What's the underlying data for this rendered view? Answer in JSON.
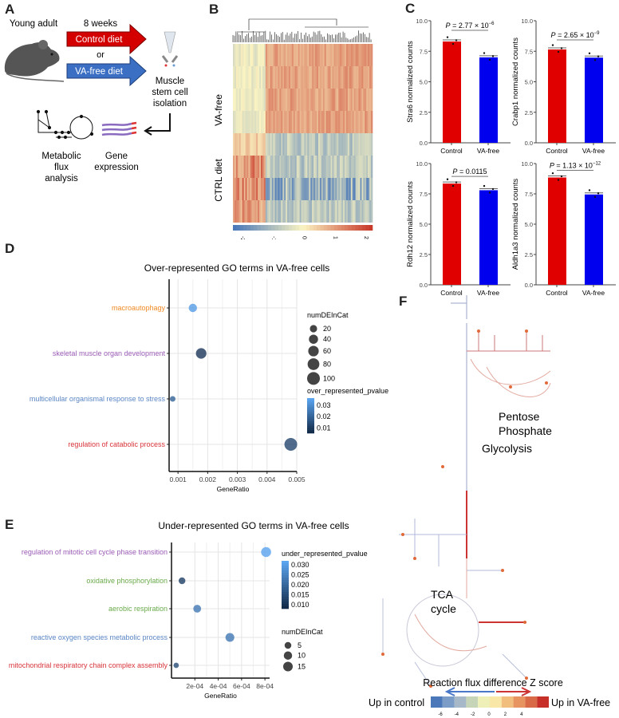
{
  "panels": {
    "a": "A",
    "b": "B",
    "c": "C",
    "d": "D",
    "e": "E",
    "f": "F"
  },
  "schematic": {
    "subject": "Young adult",
    "duration": "8 weeks",
    "control_diet": "Control diet",
    "or": "or",
    "va_free_diet": "VA-free diet",
    "isolation": [
      "Muscle",
      "stem cell",
      "isolation"
    ],
    "flux": [
      "Metabolic",
      "flux",
      "analysis"
    ],
    "expression": [
      "Gene",
      "expression"
    ],
    "colors": {
      "control": "#d40000",
      "va_free": "#3a6fc4"
    }
  },
  "heatmap": {
    "row_groups": [
      "VA-free",
      "CTRL diet"
    ],
    "colorbar_ticks": [
      "-2",
      "-1",
      "0",
      "1",
      "2"
    ],
    "colors": {
      "low": "#4a78b8",
      "mid": "#fbf4c2",
      "high": "#c83a2a"
    }
  },
  "chart_data": [
    {
      "type": "bar",
      "ylabel": "Stra6 normalized counts",
      "categories": [
        "Control",
        "VA-free"
      ],
      "values": [
        8.3,
        7.0
      ],
      "ylim": [
        0,
        10
      ],
      "yticks": [
        "0.0",
        "2.5",
        "5.0",
        "7.5",
        "10.0"
      ],
      "annotation": {
        "p": "P",
        "text": " = 2.77 × 10",
        "exp": "−6"
      },
      "colors": [
        "#e00000",
        "#0000ee"
      ]
    },
    {
      "type": "bar",
      "ylabel": "Crabp1 normalized counts",
      "categories": [
        "Control",
        "VA-free"
      ],
      "values": [
        7.65,
        6.98
      ],
      "ylim": [
        0,
        10
      ],
      "yticks": [
        "0.0",
        "2.5",
        "5.0",
        "7.5",
        "10.0"
      ],
      "annotation": {
        "p": "P",
        "text": " = 2.65 × 10",
        "exp": "−9"
      },
      "colors": [
        "#e00000",
        "#0000ee"
      ]
    },
    {
      "type": "bar",
      "ylabel": "Rdh12 normalized counts",
      "categories": [
        "Control",
        "VA-free"
      ],
      "values": [
        8.35,
        7.8
      ],
      "ylim": [
        0,
        10
      ],
      "yticks": [
        "0.0",
        "2.5",
        "5.0",
        "7.5",
        "10.0"
      ],
      "annotation": {
        "p": "P",
        "text": " = 0.0115",
        "exp": ""
      },
      "colors": [
        "#e00000",
        "#0000ee"
      ]
    },
    {
      "type": "bar",
      "ylabel": "Aldh1a3 normalized counts",
      "categories": [
        "Control",
        "VA-free"
      ],
      "values": [
        8.85,
        7.45
      ],
      "ylim": [
        0,
        10
      ],
      "yticks": [
        "0.0",
        "2.5",
        "5.0",
        "7.5",
        "10.0"
      ],
      "annotation": {
        "p": "P",
        "text": " = 1.13 × 10",
        "exp": "−12"
      },
      "colors": [
        "#e00000",
        "#0000ee"
      ]
    },
    {
      "type": "scatter",
      "title": "Over-represented GO terms in VA-free cells",
      "xlabel": "GeneRatio",
      "xlim": [
        0.0007,
        0.005
      ],
      "xticks": [
        "0.001",
        "0.002",
        "0.003",
        "0.004",
        "0.005"
      ],
      "grid": true,
      "terms": [
        {
          "label": "macroautophagy",
          "x": 0.0015,
          "size": 30,
          "p": 0.035,
          "color": "#f08a24"
        },
        {
          "label": "skeletal muscle organ development",
          "x": 0.00178,
          "size": 60,
          "p": 0.008,
          "color": "#9a5bb5"
        },
        {
          "label": "multicellular organismal response to stress",
          "x": 0.00082,
          "size": 8,
          "p": 0.02,
          "color": "#5b86c5"
        },
        {
          "label": "regulation of catabolic process",
          "x": 0.0048,
          "size": 100,
          "p": 0.012,
          "color": "#d8333a"
        }
      ],
      "size_legend": {
        "title": "numDEInCat",
        "values": [
          20,
          40,
          60,
          80,
          100
        ]
      },
      "color_legend": {
        "title": "over_represented_pvalue",
        "ticks": [
          "0.03",
          "0.02",
          "0.01"
        ],
        "range": [
          0.005,
          0.037
        ]
      }
    },
    {
      "type": "scatter",
      "title": "Under-represented GO terms in VA-free cells",
      "xlabel": "GeneRatio",
      "xlim": [
        0,
        0.00084
      ],
      "xticks": [
        "2e-04",
        "4e-04",
        "6e-04",
        "8e-04"
      ],
      "grid": true,
      "terms": [
        {
          "label": "regulation of mitotic cell cycle phase transition",
          "x": 0.00081,
          "size": 17,
          "p": 0.033,
          "color": "#9a5bb5"
        },
        {
          "label": "oxidative phosphorylation",
          "x": 9e-05,
          "size": 5,
          "p": 0.012,
          "color": "#6aaa4a"
        },
        {
          "label": "aerobic respiration",
          "x": 0.00022,
          "size": 8,
          "p": 0.024,
          "color": "#6aaa4a"
        },
        {
          "label": "reactive oxygen species metabolic process",
          "x": 0.0005,
          "size": 12,
          "p": 0.024,
          "color": "#5b86c5"
        },
        {
          "label": "mitochondrial respiratory chain complex assembly",
          "x": 4e-05,
          "size": 2,
          "p": 0.015,
          "color": "#d8333a"
        }
      ],
      "size_legend": {
        "title": "numDEInCat",
        "values": [
          5,
          10,
          15
        ]
      },
      "color_legend": {
        "title": "under_represented_pvalue",
        "ticks": [
          "0.030",
          "0.025",
          "0.020",
          "0.015",
          "0.010"
        ],
        "range": [
          0.008,
          0.033
        ]
      }
    }
  ],
  "flux_map": {
    "labels": {
      "ppp": [
        "Pentose",
        "Phosphate"
      ],
      "glycolysis": "Glycolysis",
      "tca": [
        "TCA",
        "cycle"
      ]
    },
    "legend_title": "Reaction flux difference Z score",
    "left_label": "Up in control",
    "right_label": "Up in VA-free",
    "ticks": [
      "-6",
      "-4",
      "-2",
      "0",
      "2",
      "4"
    ],
    "scale_colors": [
      "#4a78b8",
      "#7c9cc8",
      "#a7b8c8",
      "#c6d4b8",
      "#eef0b8",
      "#f8e7a6",
      "#f2be7e",
      "#e89460",
      "#d86a48",
      "#c73028"
    ]
  }
}
